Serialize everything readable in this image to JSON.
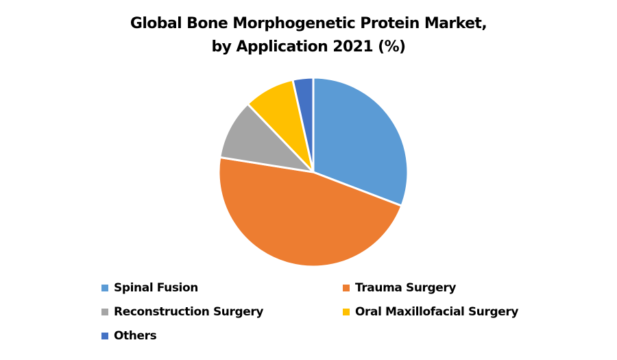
{
  "chart_data": {
    "type": "pie",
    "title": "Global Bone Morphogenetic Protein Market, by Application 2021 (%)",
    "title_lines": [
      "Global Bone Morphogenetic Protein Market,",
      "by Application 2021 (%)"
    ],
    "categories": [
      "Spinal Fusion",
      "Trauma Surgery",
      "Reconstruction Surgery",
      "Oral Maxillofacial Surgery",
      "Others"
    ],
    "values": [
      30.8,
      46.7,
      10.3,
      8.7,
      3.5
    ],
    "colors": [
      "#5B9BD5",
      "#ED7D31",
      "#A5A5A5",
      "#FFC000",
      "#4472C4"
    ],
    "start_angle_deg": 0,
    "direction": "clockwise",
    "legend_position": "bottom",
    "data_labels": false
  },
  "legend": {
    "items": [
      {
        "label": "Spinal Fusion",
        "color": "#5B9BD5"
      },
      {
        "label": "Trauma Surgery",
        "color": "#ED7D31"
      },
      {
        "label": "Reconstruction Surgery",
        "color": "#A5A5A5"
      },
      {
        "label": "Oral Maxillofacial Surgery",
        "color": "#FFC000"
      },
      {
        "label": "Others",
        "color": "#4472C4"
      }
    ]
  }
}
